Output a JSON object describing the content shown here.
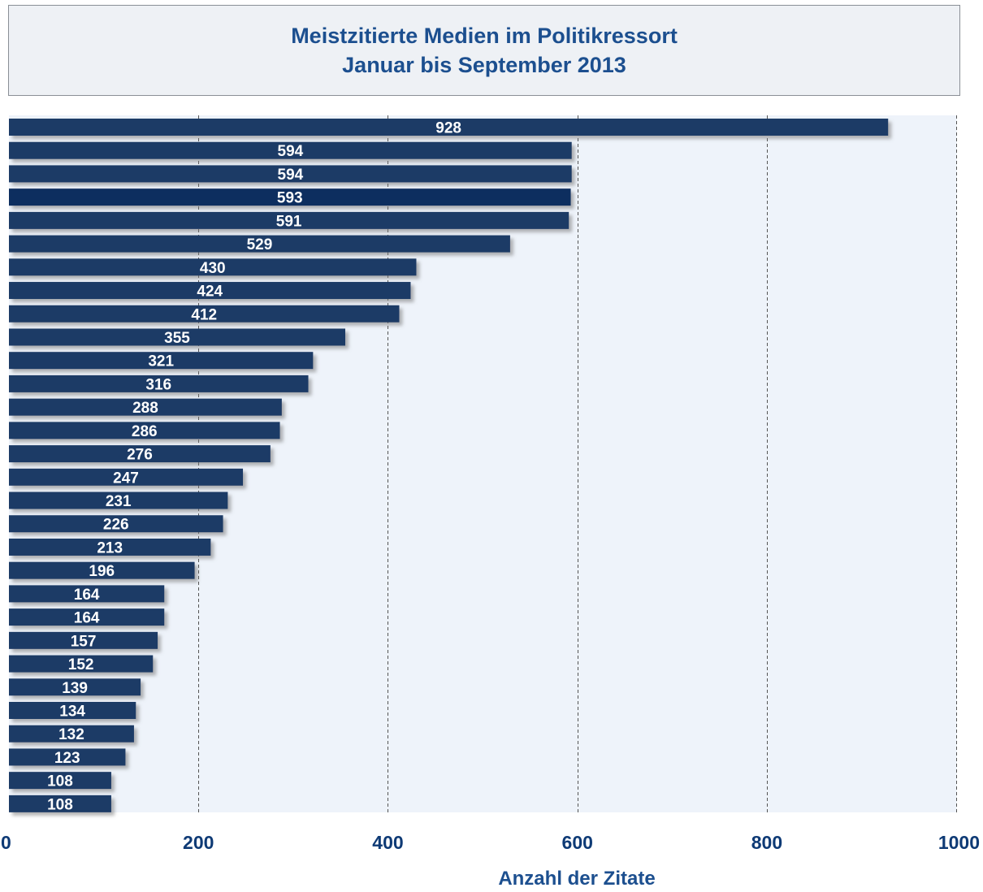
{
  "title": {
    "line1": "Meistzitierte Medien im Politikressort",
    "line2": "Januar bis September 2013"
  },
  "colors": {
    "bar": "#1b3a66",
    "bar_highlight": "#0d2e5e",
    "plot_bg": "#eef3fa",
    "title_text": "#1c4f8f",
    "tick_text": "#0e3a75",
    "grid": "#555555"
  },
  "chart_data": {
    "type": "bar",
    "orientation": "horizontal",
    "title": "Meistzitierte Medien im Politikressort Januar bis September 2013",
    "xlabel": "Anzahl der Zitate",
    "ylabel": "",
    "xlim": [
      0,
      1000
    ],
    "xticks": [
      0,
      200,
      400,
      600,
      800,
      1000
    ],
    "grid": "vertical dashed",
    "highlight_index": 3,
    "values": [
      928,
      594,
      594,
      593,
      591,
      529,
      430,
      424,
      412,
      355,
      321,
      316,
      288,
      286,
      276,
      247,
      231,
      226,
      213,
      196,
      164,
      164,
      157,
      152,
      139,
      134,
      132,
      123,
      108,
      108
    ]
  }
}
